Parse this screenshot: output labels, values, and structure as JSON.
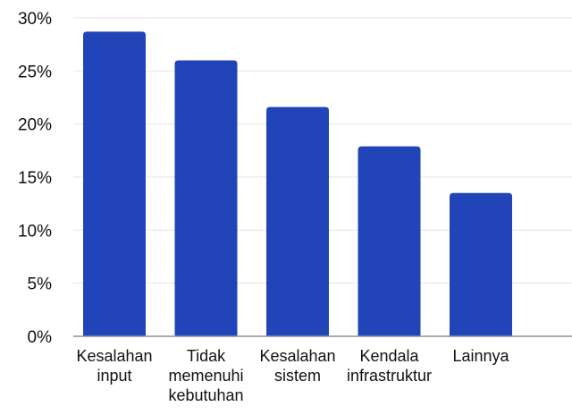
{
  "chart_data": {
    "type": "bar",
    "categories": [
      [
        "Kesalahan",
        "input"
      ],
      [
        "Tidak",
        "memenuhi",
        "kebutuhan"
      ],
      [
        "Kesalahan",
        "sistem"
      ],
      [
        "Kendala",
        "infrastruktur"
      ],
      [
        "Lainnya"
      ]
    ],
    "values": [
      28.7,
      26.0,
      21.6,
      17.9,
      13.5
    ],
    "y_ticks": [
      "0%",
      "5%",
      "10%",
      "15%",
      "20%",
      "25%",
      "30%"
    ],
    "ylim": [
      0,
      30
    ],
    "grid": true,
    "bar_color": "#2145b8",
    "grid_color": "#e3e6ea",
    "axis_color": "#8a93a0",
    "title": "",
    "xlabel": "",
    "ylabel": ""
  }
}
